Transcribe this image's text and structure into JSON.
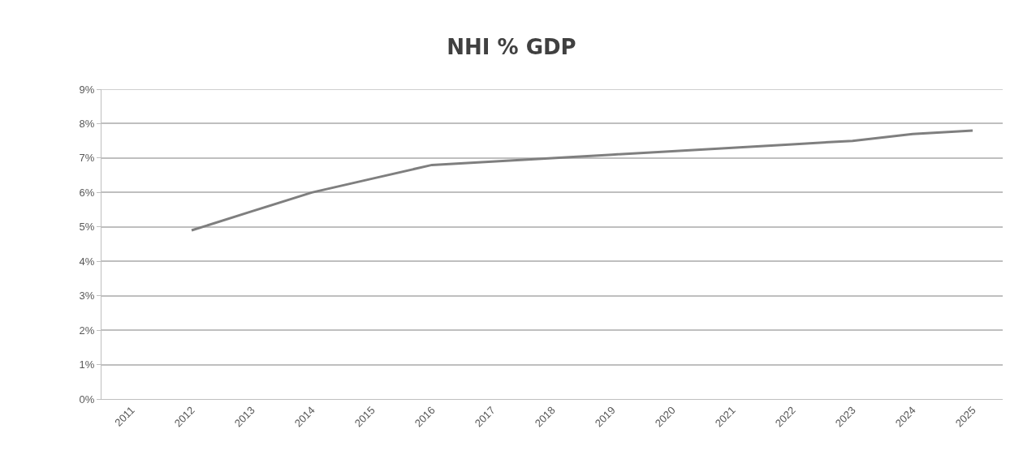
{
  "chart_data": {
    "type": "line",
    "title": "NHI % GDP",
    "categories": [
      "2011",
      "2012",
      "2013",
      "2014",
      "2015",
      "2016",
      "2017",
      "2018",
      "2019",
      "2020",
      "2021",
      "2022",
      "2023",
      "2024",
      "2025"
    ],
    "series": [
      {
        "color": "#7f7f7f",
        "values": [
          null,
          4.9,
          5.45,
          6.0,
          6.4,
          6.8,
          6.9,
          7.0,
          7.1,
          7.2,
          7.3,
          7.4,
          7.5,
          7.7,
          7.8
        ]
      }
    ],
    "ylim": [
      0,
      9
    ],
    "yticks": [
      {
        "value": 0,
        "label": "0%"
      },
      {
        "value": 1,
        "label": "1%"
      },
      {
        "value": 2,
        "label": "2%"
      },
      {
        "value": 3,
        "label": "3%"
      },
      {
        "value": 4,
        "label": "4%"
      },
      {
        "value": 5,
        "label": "5%"
      },
      {
        "value": 6,
        "label": "6%"
      },
      {
        "value": 7,
        "label": "7%"
      },
      {
        "value": 8,
        "label": "8%"
      },
      {
        "value": 9,
        "label": "9%"
      }
    ],
    "grid": "y",
    "marker": "none",
    "line_style": "solid"
  }
}
